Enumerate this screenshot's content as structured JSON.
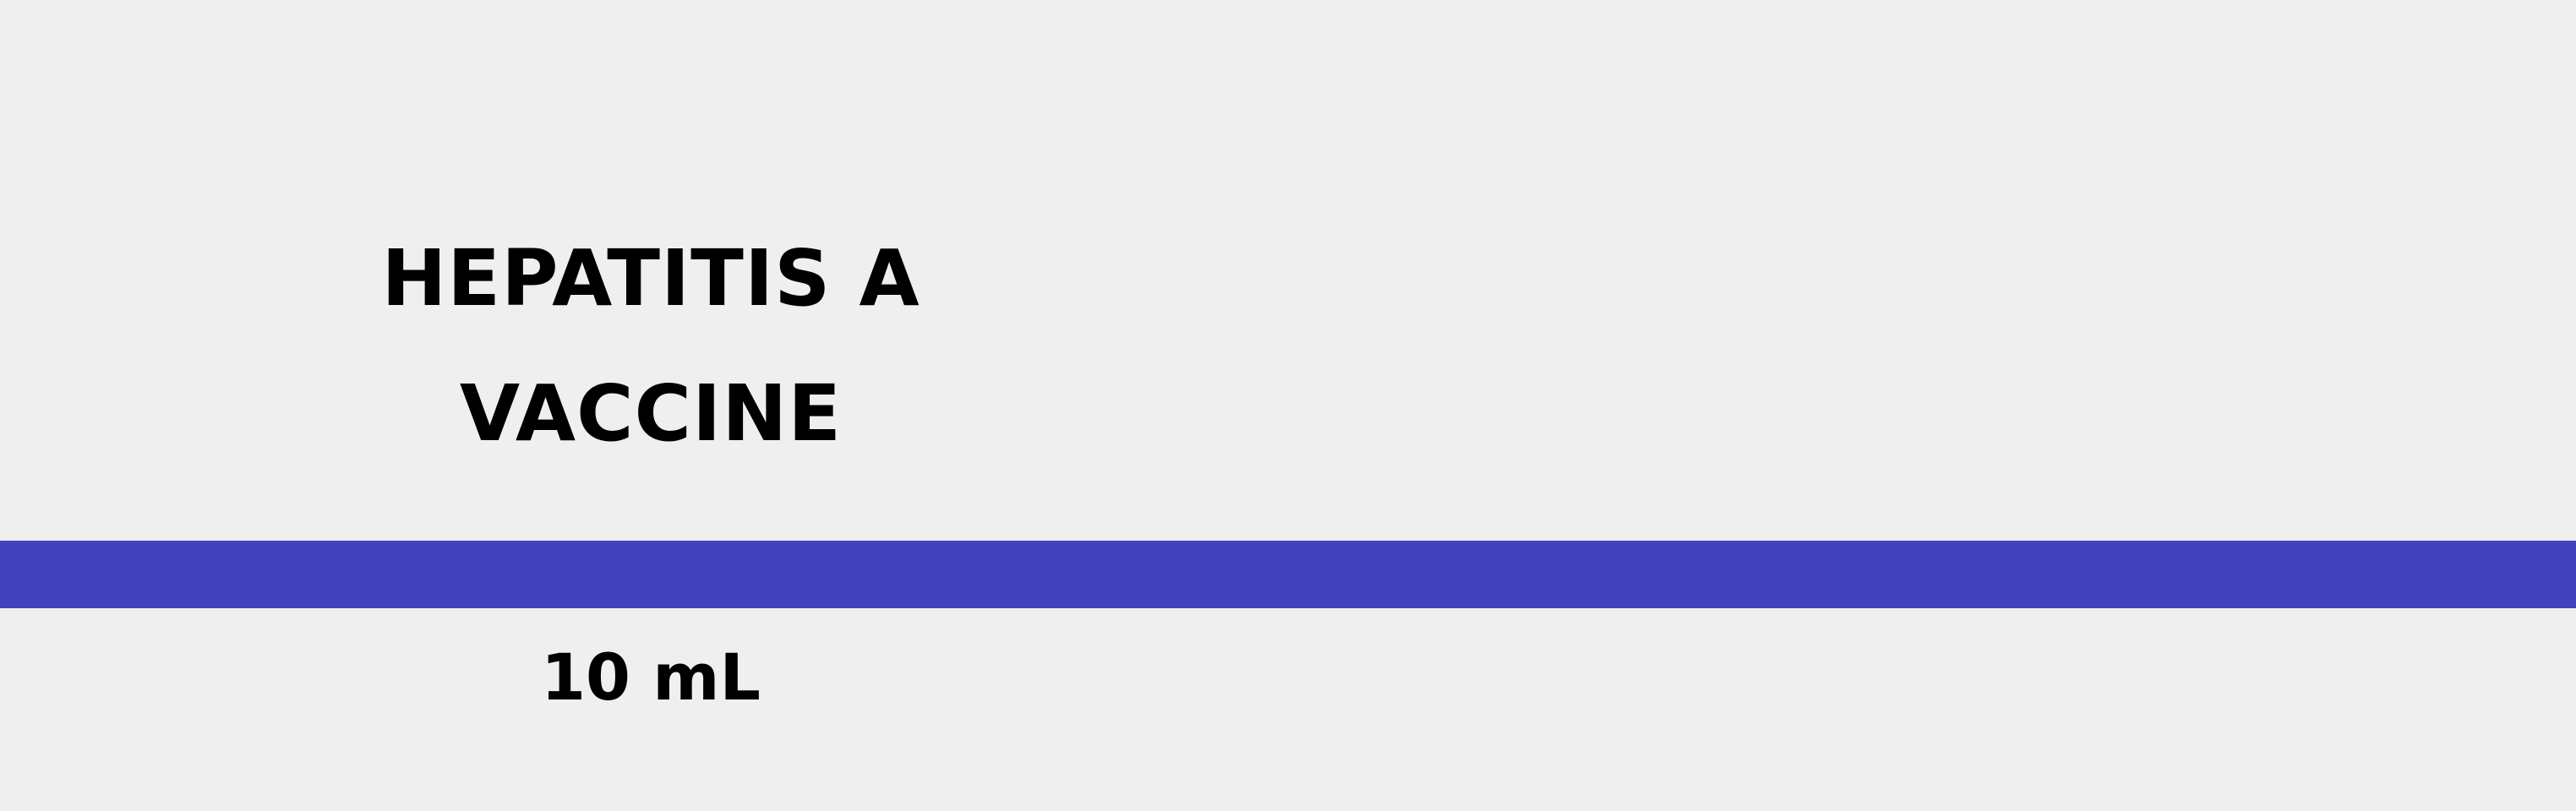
{
  "label": {
    "title_line_1": "HEPATITIS A",
    "title_line_2": "VACCINE",
    "volume": "10 mL"
  },
  "colors": {
    "background": "#efefef",
    "accent_band": "#4242bf",
    "text": "#000000"
  }
}
